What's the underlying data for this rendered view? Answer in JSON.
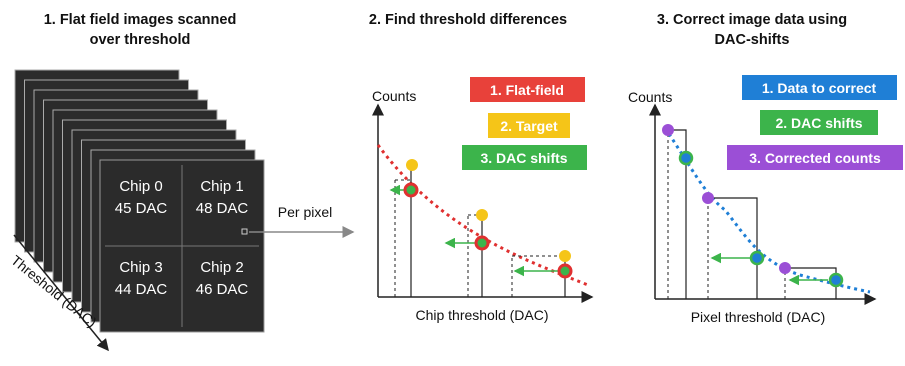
{
  "panel1": {
    "title": [
      "1. Flat field images scanned",
      "over threshold"
    ],
    "chips": [
      {
        "name": "Chip 0",
        "dac": "45 DAC"
      },
      {
        "name": "Chip 1",
        "dac": "48 DAC"
      },
      {
        "name": "Chip 3",
        "dac": "44 DAC"
      },
      {
        "name": "Chip 2",
        "dac": "46 DAC"
      }
    ],
    "axis_label": "Threshold (DAC)",
    "arrow_label": "Per pixel"
  },
  "panel2": {
    "title": [
      "2. Find threshold differences"
    ],
    "y_label": "Counts",
    "x_label": "Chip threshold (DAC)",
    "legend": [
      "1. Flat-field",
      "2. Target",
      "3. DAC shifts"
    ]
  },
  "panel3": {
    "title": [
      "3. Correct image data using",
      "DAC-shifts"
    ],
    "y_label": "Counts",
    "x_label": "Pixel threshold (DAC)",
    "legend": [
      "1. Data to correct",
      "2. DAC shifts",
      "3. Corrected counts"
    ]
  }
}
